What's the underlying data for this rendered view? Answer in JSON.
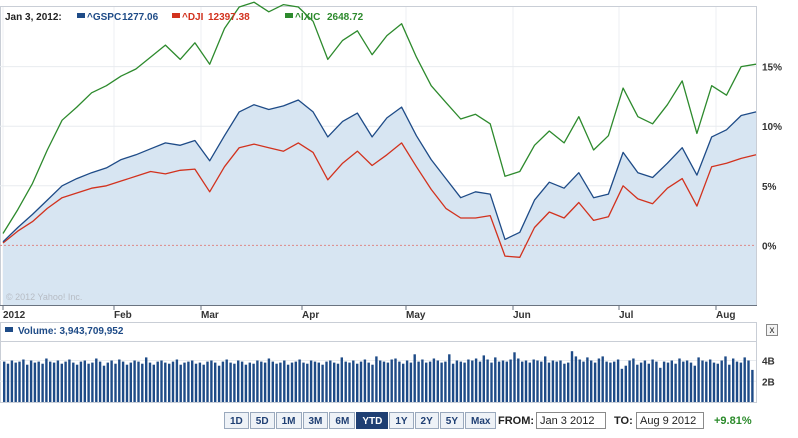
{
  "legend": {
    "date": "Jan 3, 2012:",
    "items": [
      {
        "symbol": "^GSPC",
        "value": "1277.06",
        "color": "#1e4b87"
      },
      {
        "symbol": "^DJI",
        "value": "12397.38",
        "color": "#d2321e"
      },
      {
        "symbol": "^IXIC",
        "value": "2648.72",
        "color": "#2d8a2d"
      }
    ]
  },
  "copyright": "© 2012 Yahoo! Inc.",
  "volume_label": "Volume: 3,943,709,952",
  "range_buttons": [
    "1D",
    "5D",
    "1M",
    "3M",
    "6M",
    "YTD",
    "1Y",
    "2Y",
    "5Y",
    "Max"
  ],
  "active_range": "YTD",
  "from": {
    "label": "FROM:",
    "value": "Jan 3 2012"
  },
  "to": {
    "label": "TO:",
    "value": "Aug 9 2012"
  },
  "change": "+9.81%",
  "close_symbol": "x",
  "chart_data": {
    "type": "line",
    "x_tick_labels": [
      "2012",
      "Feb",
      "Mar",
      "Apr",
      "May",
      "Jun",
      "Jul",
      "Aug"
    ],
    "y_tick_labels": [
      "15%",
      "10%",
      "5%",
      "0%"
    ],
    "y_ticks": [
      15,
      10,
      5,
      0
    ],
    "ylim": [
      -5,
      20
    ],
    "x": [
      "Jan 3",
      "Jan 6",
      "Jan 10",
      "Jan 13",
      "Jan 18",
      "Jan 23",
      "Jan 27",
      "Feb 1",
      "Feb 6",
      "Feb 10",
      "Feb 15",
      "Feb 21",
      "Feb 24",
      "Mar 1",
      "Mar 6",
      "Mar 9",
      "Mar 14",
      "Mar 19",
      "Mar 23",
      "Mar 28",
      "Apr 2",
      "Apr 5",
      "Apr 10",
      "Apr 13",
      "Apr 18",
      "Apr 23",
      "Apr 26",
      "May 1",
      "May 4",
      "May 9",
      "May 14",
      "May 17",
      "May 22",
      "May 25",
      "May 31",
      "Jun 1",
      "Jun 5",
      "Jun 8",
      "Jun 13",
      "Jun 18",
      "Jun 21",
      "Jun 26",
      "Jul 2",
      "Jul 6",
      "Jul 11",
      "Jul 16",
      "Jul 19",
      "Jul 24",
      "Jul 27",
      "Aug 1",
      "Aug 6",
      "Aug 9"
    ],
    "series": [
      {
        "name": "^GSPC",
        "color": "#1e4b87",
        "values": [
          0.3,
          1.5,
          2.6,
          3.8,
          5.0,
          5.6,
          6.1,
          6.5,
          7.2,
          7.6,
          8.1,
          8.6,
          8.4,
          8.8,
          7.1,
          9.2,
          11.2,
          11.8,
          11.4,
          11.7,
          12.2,
          11.2,
          9.1,
          10.4,
          11.1,
          9.1,
          10.7,
          11.6,
          9.2,
          7.2,
          5.6,
          4.0,
          4.5,
          4.3,
          0.5,
          1.1,
          3.8,
          5.3,
          4.8,
          6.1,
          4.0,
          4.3,
          7.8,
          6.1,
          5.7,
          6.9,
          8.2,
          5.9,
          9.1,
          9.7,
          10.9,
          11.2
        ]
      },
      {
        "name": "^DJI",
        "color": "#d2321e",
        "values": [
          0.2,
          1.2,
          2.0,
          3.1,
          4.0,
          4.4,
          4.8,
          5.0,
          5.4,
          5.8,
          6.2,
          6.0,
          6.3,
          6.4,
          4.5,
          6.6,
          8.2,
          8.5,
          8.2,
          7.9,
          8.6,
          7.8,
          5.5,
          6.9,
          7.9,
          6.7,
          7.6,
          8.6,
          6.6,
          4.7,
          3.1,
          2.3,
          2.3,
          2.5,
          -0.9,
          -1.0,
          1.5,
          2.8,
          2.3,
          3.6,
          2.1,
          2.4,
          5.0,
          3.9,
          3.5,
          4.8,
          5.6,
          3.3,
          6.6,
          6.9,
          7.3,
          7.6
        ]
      },
      {
        "name": "^IXIC",
        "color": "#2d8a2d",
        "values": [
          1.0,
          3.0,
          5.2,
          8.0,
          10.5,
          11.6,
          12.8,
          13.4,
          14.2,
          14.8,
          15.8,
          16.8,
          15.6,
          17.0,
          15.2,
          18.2,
          20.0,
          20.4,
          19.6,
          20.2,
          20.0,
          18.8,
          15.6,
          17.2,
          18.0,
          16.0,
          17.6,
          18.6,
          15.8,
          13.4,
          12.0,
          10.6,
          11.0,
          10.2,
          5.8,
          6.2,
          8.4,
          9.6,
          8.6,
          10.8,
          8.0,
          9.2,
          13.2,
          10.8,
          10.2,
          11.8,
          13.8,
          9.4,
          13.4,
          12.6,
          15.0,
          15.2
        ]
      }
    ],
    "volume": {
      "y_tick_labels": [
        "4B",
        "2B"
      ],
      "y_ticks": [
        4,
        2
      ],
      "ylim": [
        0,
        5.5
      ],
      "unit": "billions",
      "values": [
        3.9,
        3.7,
        4.0,
        3.8,
        3.9,
        4.1,
        3.6,
        4.0,
        3.8,
        3.9,
        3.7,
        4.2,
        3.9,
        3.8,
        4.0,
        3.7,
        3.9,
        4.1,
        3.8,
        3.6,
        3.9,
        4.0,
        3.7,
        3.8,
        4.2,
        3.9,
        3.5,
        3.8,
        4.0,
        3.7,
        4.1,
        3.9,
        3.6,
        3.8,
        4.0,
        3.9,
        3.7,
        4.3,
        3.8,
        3.6,
        3.9,
        4.0,
        3.8,
        3.7,
        3.9,
        4.1,
        3.6,
        3.8,
        3.9,
        4.0,
        3.7,
        3.8,
        3.6,
        3.9,
        4.0,
        3.8,
        3.5,
        3.9,
        4.1,
        3.8,
        3.7,
        4.0,
        3.9,
        3.6,
        3.8,
        3.7,
        4.0,
        3.9,
        3.8,
        4.2,
        3.9,
        3.7,
        3.8,
        4.0,
        3.6,
        3.8,
        3.9,
        4.1,
        3.8,
        3.7,
        4.0,
        3.9,
        3.8,
        3.6,
        3.9,
        4.0,
        3.8,
        3.7,
        4.3,
        3.9,
        3.8,
        4.0,
        3.7,
        3.9,
        4.1,
        3.8,
        3.6,
        4.4,
        4.0,
        3.9,
        3.8,
        4.1,
        4.2,
        3.9,
        3.7,
        4.0,
        3.8,
        4.6,
        3.9,
        4.1,
        3.8,
        3.9,
        4.2,
        4.0,
        3.8,
        3.9,
        4.6,
        3.7,
        4.0,
        3.9,
        3.8,
        4.1,
        4.0,
        4.2,
        3.9,
        4.5,
        4.1,
        3.8,
        4.3,
        3.9,
        4.0,
        3.9,
        4.1,
        4.8,
        4.2,
        3.9,
        4.0,
        3.8,
        4.1,
        4.0,
        3.9,
        4.4,
        3.8,
        4.0,
        3.9,
        4.0,
        3.7,
        3.8,
        4.9,
        4.4,
        4.1,
        3.9,
        4.3,
        4.0,
        3.8,
        4.2,
        4.4,
        3.9,
        3.8,
        3.9,
        4.1,
        3.2,
        3.5,
        4.0,
        4.2,
        3.6,
        3.8,
        4.0,
        3.7,
        4.1,
        3.9,
        3.3,
        3.9,
        3.8,
        4.0,
        3.7,
        4.2,
        3.9,
        4.0,
        3.8,
        3.5,
        4.3,
        4.0,
        3.9,
        4.1,
        3.8,
        3.7,
        4.0,
        4.4,
        3.6,
        4.2,
        3.9,
        3.8,
        4.3,
        4.0,
        3.1
      ]
    }
  }
}
